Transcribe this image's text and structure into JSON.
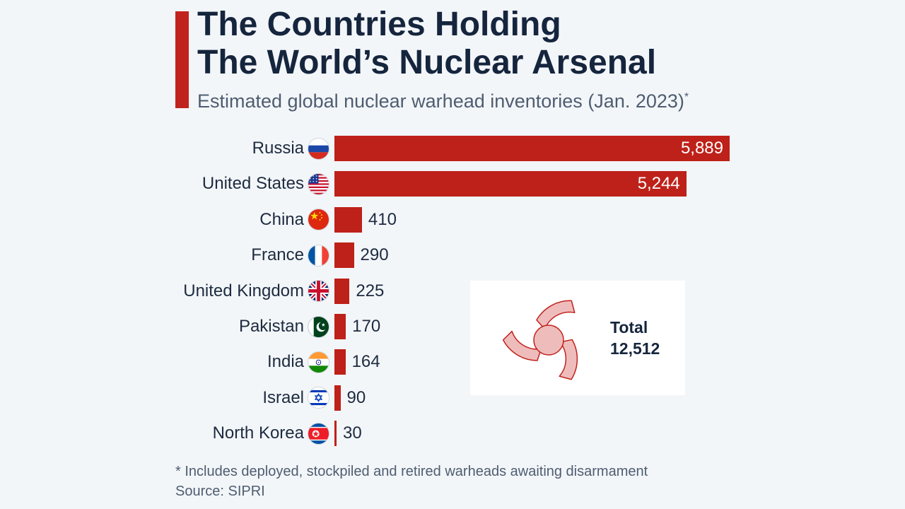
{
  "header": {
    "title_line1": "The Countries Holding",
    "title_line2": "The World’s Nuclear Arsenal",
    "subtitle": "Estimated global nuclear warhead inventories (Jan. 2023)",
    "subtitle_mark": "*"
  },
  "chart_data": {
    "type": "bar",
    "orientation": "horizontal",
    "categories": [
      "Russia",
      "United States",
      "China",
      "France",
      "United Kingdom",
      "Pakistan",
      "India",
      "Israel",
      "North Korea"
    ],
    "values": [
      5889,
      5244,
      410,
      290,
      225,
      170,
      164,
      90,
      30
    ],
    "value_labels": [
      "5,889",
      "5,244",
      "410",
      "290",
      "225",
      "170",
      "164",
      "90",
      "30"
    ],
    "flags": [
      "russia-flag",
      "usa-flag",
      "china-flag",
      "france-flag",
      "uk-flag",
      "pakistan-flag",
      "india-flag",
      "israel-flag",
      "north-korea-flag"
    ],
    "xlim": [
      0,
      5889
    ],
    "bar_color": "#be2119",
    "grid": false,
    "legend": "none"
  },
  "total_box": {
    "label": "Total",
    "value": "12,512",
    "icon": "radiation-icon"
  },
  "footer": {
    "footnote": "* Includes deployed, stockpiled and retired warheads awaiting disarmament",
    "source": "Source: SIPRI"
  },
  "colors": {
    "accent": "#c0231d",
    "title": "#15253d",
    "background": "#f3f6f9"
  }
}
